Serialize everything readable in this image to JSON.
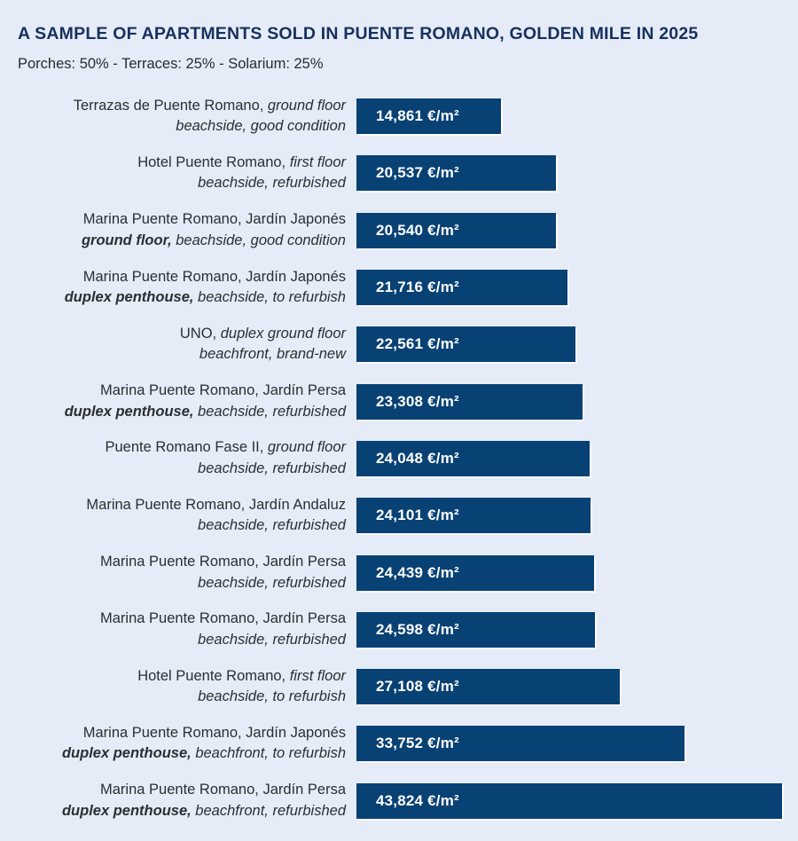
{
  "header": {
    "title": "A SAMPLE OF APARTMENTS SOLD IN PUENTE ROMANO, GOLDEN MILE IN 2025",
    "subtitle": "Porches: 50% - Terraces: 25% - Solarium: 25%"
  },
  "colors": {
    "background": "#e5ecf7",
    "bar_fill": "#084174",
    "title_text": "#17305f",
    "label_text": "#2b2e33",
    "value_text": "#ffffff"
  },
  "chart_data": {
    "type": "bar",
    "orientation": "horizontal",
    "unit": "€/m²",
    "title": "A SAMPLE OF APARTMENTS SOLD IN PUENTE ROMANO, GOLDEN MILE IN 2025",
    "subtitle": "Porches: 50% - Terraces: 25% - Solarium: 25%",
    "xlim": [
      0,
      43824
    ],
    "grid": false,
    "legend": false,
    "categories": [
      "Terrazas de Puente Romano, ground floor, beachside, good condition",
      "Hotel Puente Romano, first floor, beachside, refurbished",
      "Marina Puente Romano, Jardín Japonés, ground floor, beachside, good condition",
      "Marina Puente Romano, Jardín Japonés, duplex penthouse, beachside, to refurbish",
      "UNO, duplex ground floor, beachfront, brand-new",
      "Marina Puente Romano, Jardín Persa, duplex penthouse, beachside, refurbished",
      "Puente Romano Fase II, ground floor, beachside, refurbished",
      "Marina Puente Romano, Jardín Andaluz, beachside, refurbished",
      "Marina Puente Romano, Jardín Persa, beachside, refurbished",
      "Marina Puente Romano, Jardín Persa, beachside, refurbished",
      "Hotel Puente Romano, first floor, beachside, to refurbish",
      "Marina Puente Romano, Jardín Japonés, duplex penthouse, beachfront, to refurbish",
      "Marina Puente Romano, Jardín Persa, duplex penthouse, beachfront, refurbished"
    ],
    "values": [
      14861,
      20537,
      20540,
      21716,
      22561,
      23308,
      24048,
      24101,
      24439,
      24598,
      27108,
      33752,
      43824
    ],
    "value_labels": [
      "14,861 €/m²",
      "20,537 €/m²",
      "20,540 €/m²",
      "21,716 €/m²",
      "22,561 €/m²",
      "23,308 €/m²",
      "24,048 €/m²",
      "24,101 €/m²",
      "24,439 €/m²",
      "24,598 €/m²",
      "27,108 €/m²",
      "33,752 €/m²",
      "43,824 €/m²"
    ],
    "bars": [
      {
        "line1": "Terrazas de Puente Romano,",
        "line1_italic": " ground floor",
        "line2_bold_italic": "",
        "line2_italic": "beachside, good condition",
        "value": 14861,
        "label": "14,861 €/m²"
      },
      {
        "line1": "Hotel Puente Romano,",
        "line1_italic": " first floor",
        "line2_bold_italic": "",
        "line2_italic": "beachside, refurbished",
        "value": 20537,
        "label": "20,537 €/m²"
      },
      {
        "line1": "Marina Puente Romano, Jardín Japonés",
        "line1_italic": "",
        "line2_bold_italic": "ground floor,",
        "line2_italic": " beachside, good condition",
        "value": 20540,
        "label": "20,540 €/m²"
      },
      {
        "line1": "Marina Puente Romano, Jardín Japonés",
        "line1_italic": "",
        "line2_bold_italic": "duplex penthouse,",
        "line2_italic": " beachside, to refurbish",
        "value": 21716,
        "label": "21,716 €/m²"
      },
      {
        "line1": "UNO,",
        "line1_italic": " duplex ground floor",
        "line2_bold_italic": "",
        "line2_italic": "beachfront, brand-new",
        "value": 22561,
        "label": "22,561 €/m²"
      },
      {
        "line1": "Marina Puente Romano, Jardín Persa",
        "line1_italic": "",
        "line2_bold_italic": "duplex penthouse,",
        "line2_italic": " beachside, refurbished",
        "value": 23308,
        "label": "23,308 €/m²"
      },
      {
        "line1": "Puente Romano Fase II,",
        "line1_italic": " ground floor",
        "line2_bold_italic": "",
        "line2_italic": "beachside, refurbished",
        "value": 24048,
        "label": "24,048 €/m²"
      },
      {
        "line1": "Marina Puente Romano, Jardín Andaluz",
        "line1_italic": "",
        "line2_bold_italic": "",
        "line2_italic": "beachside, refurbished",
        "value": 24101,
        "label": "24,101 €/m²"
      },
      {
        "line1": "Marina Puente Romano, Jardín Persa",
        "line1_italic": "",
        "line2_bold_italic": "",
        "line2_italic": "beachside, refurbished",
        "value": 24439,
        "label": "24,439 €/m²"
      },
      {
        "line1": "Marina Puente Romano, Jardín Persa",
        "line1_italic": "",
        "line2_bold_italic": "",
        "line2_italic": "beachside, refurbished",
        "value": 24598,
        "label": "24,598 €/m²"
      },
      {
        "line1": "Hotel Puente Romano,",
        "line1_italic": " first floor",
        "line2_bold_italic": "",
        "line2_italic": "beachside, to refurbish",
        "value": 27108,
        "label": "27,108 €/m²"
      },
      {
        "line1": "Marina Puente Romano, Jardín Japonés",
        "line1_italic": "",
        "line2_bold_italic": "duplex penthouse,",
        "line2_italic": " beachfront, to refurbish",
        "value": 33752,
        "label": "33,752 €/m²"
      },
      {
        "line1": "Marina Puente Romano, Jardín Persa",
        "line1_italic": "",
        "line2_bold_italic": "duplex penthouse,",
        "line2_italic": " beachfront, refurbished",
        "value": 43824,
        "label": "43,824 €/m²"
      }
    ]
  }
}
